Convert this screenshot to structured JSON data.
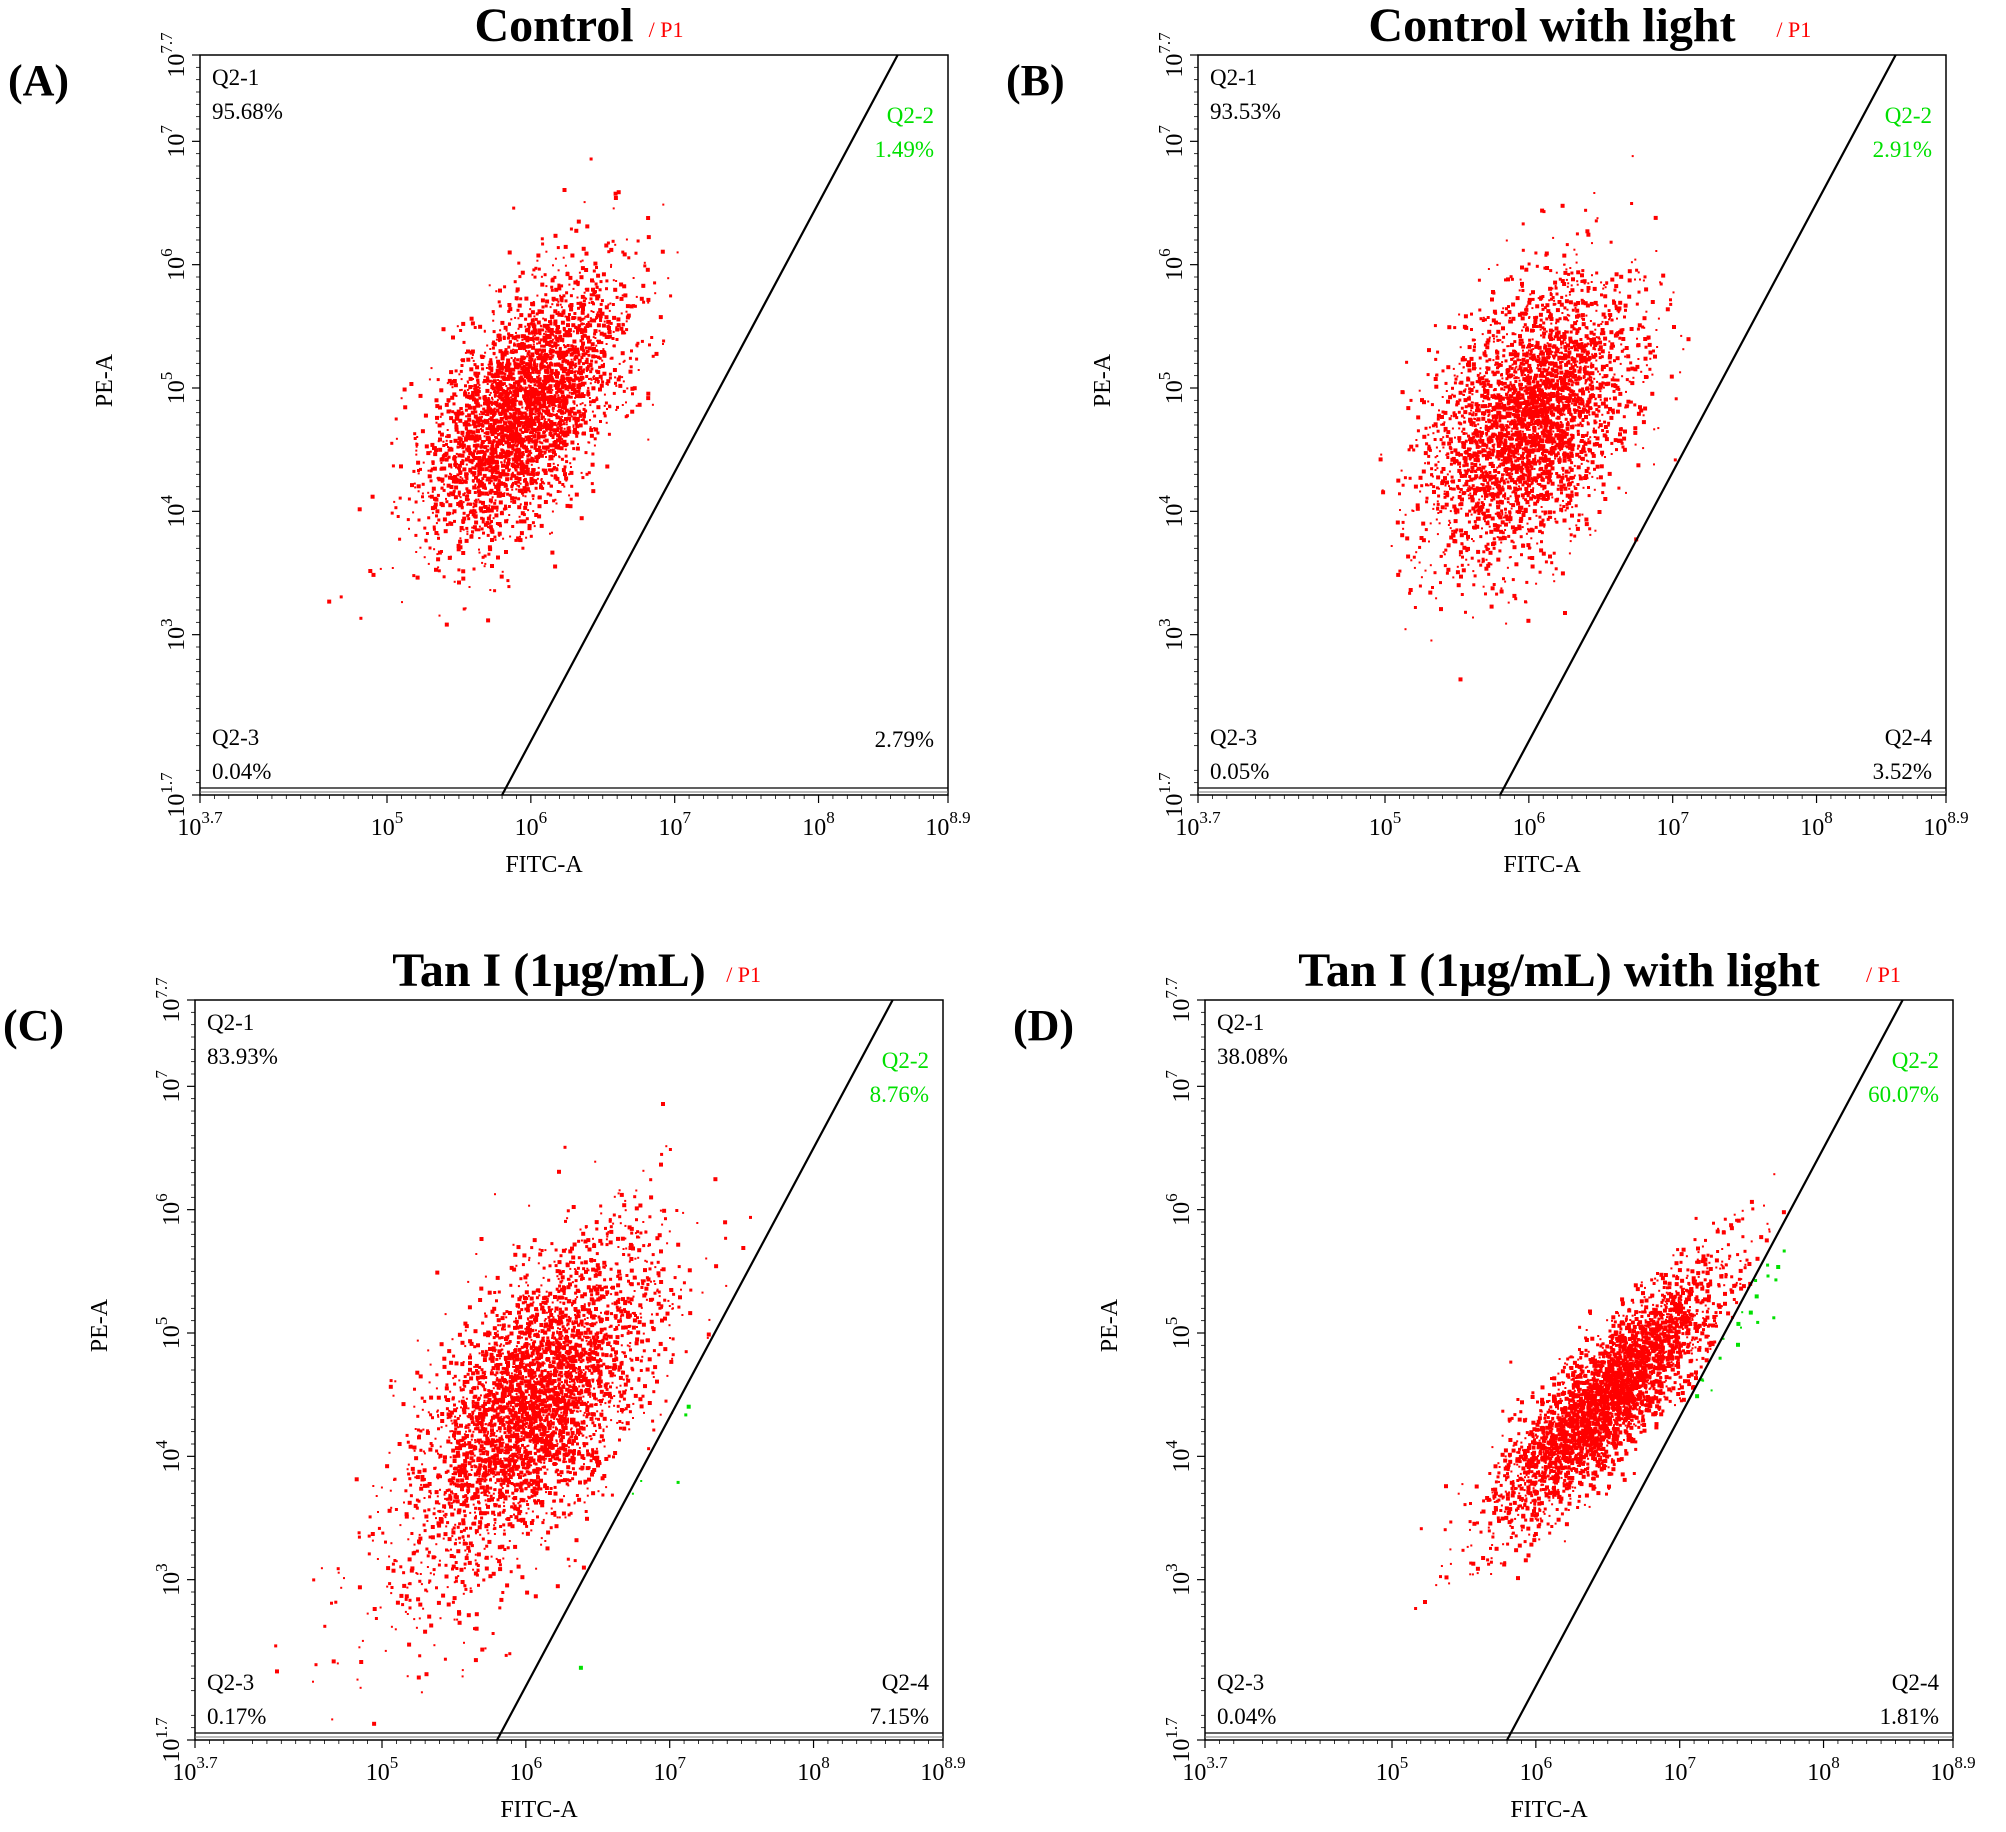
{
  "colors": {
    "events_upper_left": "#ff0000",
    "events_upper_right": "#00e000",
    "gate_line": "#000000",
    "axis": "#000000",
    "gate_name": "#ff0000"
  },
  "chart_data": [
    {
      "type": "scatter",
      "panel_label": "(A)",
      "title": "Control",
      "gate": "/ P1",
      "xlabel": "FITC-A",
      "ylabel": "PE-A",
      "x_log_range": [
        3.7,
        8.9
      ],
      "y_log_range": [
        1.7,
        7.7
      ],
      "x_ticks": [
        {
          "base": "10",
          "exp": "3.7"
        },
        {
          "base": "10",
          "exp": "5"
        },
        {
          "base": "10",
          "exp": "6"
        },
        {
          "base": "10",
          "exp": "7"
        },
        {
          "base": "10",
          "exp": "8"
        },
        {
          "base": "10",
          "exp": "8.9"
        }
      ],
      "y_ticks": [
        {
          "base": "10",
          "exp": "1.7"
        },
        {
          "base": "10",
          "exp": "3"
        },
        {
          "base": "10",
          "exp": "4"
        },
        {
          "base": "10",
          "exp": "5"
        },
        {
          "base": "10",
          "exp": "6"
        },
        {
          "base": "10",
          "exp": "7"
        },
        {
          "base": "10",
          "exp": "7.7"
        }
      ],
      "gate_line_log": [
        [
          5.8,
          1.7
        ],
        [
          8.55,
          7.7
        ]
      ],
      "quadrants": {
        "q1": {
          "name": "Q2-1",
          "percent": "95.68%"
        },
        "q2": {
          "name": "Q2-2",
          "percent": "1.49%"
        },
        "q3": {
          "name": "Q2-3",
          "percent": "0.04%"
        },
        "q4": {
          "name": "",
          "percent": "2.79%"
        }
      },
      "clusters": [
        {
          "cx": 5.95,
          "cy": 4.85,
          "sx": 0.33,
          "sy": 0.52,
          "rho": 0.55,
          "n": 3400
        }
      ]
    },
    {
      "type": "scatter",
      "panel_label": "(B)",
      "title": "Control with light",
      "gate": "/ P1",
      "xlabel": "FITC-A",
      "ylabel": "PE-A",
      "x_log_range": [
        3.7,
        8.9
      ],
      "y_log_range": [
        1.7,
        7.7
      ],
      "x_ticks": [
        {
          "base": "10",
          "exp": "3.7"
        },
        {
          "base": "10",
          "exp": "5"
        },
        {
          "base": "10",
          "exp": "6"
        },
        {
          "base": "10",
          "exp": "7"
        },
        {
          "base": "10",
          "exp": "8"
        },
        {
          "base": "10",
          "exp": "8.9"
        }
      ],
      "y_ticks": [
        {
          "base": "10",
          "exp": "1.7"
        },
        {
          "base": "10",
          "exp": "3"
        },
        {
          "base": "10",
          "exp": "4"
        },
        {
          "base": "10",
          "exp": "5"
        },
        {
          "base": "10",
          "exp": "6"
        },
        {
          "base": "10",
          "exp": "7"
        },
        {
          "base": "10",
          "exp": "7.7"
        }
      ],
      "gate_line_log": [
        [
          5.8,
          1.7
        ],
        [
          8.55,
          7.7
        ]
      ],
      "quadrants": {
        "q1": {
          "name": "Q2-1",
          "percent": "93.53%"
        },
        "q2": {
          "name": "Q2-2",
          "percent": "2.91%"
        },
        "q3": {
          "name": "Q2-3",
          "percent": "0.05%"
        },
        "q4": {
          "name": "Q2-4",
          "percent": "3.52%"
        }
      },
      "clusters": [
        {
          "cx": 6.0,
          "cy": 4.75,
          "sx": 0.35,
          "sy": 0.55,
          "rho": 0.45,
          "n": 3400
        }
      ]
    },
    {
      "type": "scatter",
      "panel_label": "(C)",
      "title": "Tan I (1μg/mL)",
      "gate": "/ P1",
      "xlabel": "FITC-A",
      "ylabel": "PE-A",
      "x_log_range": [
        3.7,
        8.9
      ],
      "y_log_range": [
        1.7,
        7.7
      ],
      "x_ticks": [
        {
          "base": "10",
          "exp": "3.7"
        },
        {
          "base": "10",
          "exp": "5"
        },
        {
          "base": "10",
          "exp": "6"
        },
        {
          "base": "10",
          "exp": "7"
        },
        {
          "base": "10",
          "exp": "8"
        },
        {
          "base": "10",
          "exp": "8.9"
        }
      ],
      "y_ticks": [
        {
          "base": "10",
          "exp": "1.7"
        },
        {
          "base": "10",
          "exp": "3"
        },
        {
          "base": "10",
          "exp": "4"
        },
        {
          "base": "10",
          "exp": "5"
        },
        {
          "base": "10",
          "exp": "6"
        },
        {
          "base": "10",
          "exp": "7"
        },
        {
          "base": "10",
          "exp": "7.7"
        }
      ],
      "gate_line_log": [
        [
          5.8,
          1.7
        ],
        [
          8.55,
          7.7
        ]
      ],
      "quadrants": {
        "q1": {
          "name": "Q2-1",
          "percent": "83.93%"
        },
        "q2": {
          "name": "Q2-2",
          "percent": "8.76%"
        },
        "q3": {
          "name": "Q2-3",
          "percent": "0.17%"
        },
        "q4": {
          "name": "Q2-4",
          "percent": "7.15%"
        }
      },
      "clusters": [
        {
          "cx": 6.05,
          "cy": 4.45,
          "sx": 0.4,
          "sy": 0.62,
          "rho": 0.6,
          "n": 3800
        },
        {
          "cx": 5.3,
          "cy": 3.0,
          "sx": 0.5,
          "sy": 0.5,
          "rho": 0.5,
          "n": 120
        }
      ]
    },
    {
      "type": "scatter",
      "panel_label": "(D)",
      "title": "Tan I (1μg/mL) with light",
      "gate": "/ P1",
      "xlabel": "FITC-A",
      "ylabel": "PE-A",
      "x_log_range": [
        3.7,
        8.9
      ],
      "y_log_range": [
        1.7,
        7.7
      ],
      "x_ticks": [
        {
          "base": "10",
          "exp": "3.7"
        },
        {
          "base": "10",
          "exp": "5"
        },
        {
          "base": "10",
          "exp": "6"
        },
        {
          "base": "10",
          "exp": "7"
        },
        {
          "base": "10",
          "exp": "8"
        },
        {
          "base": "10",
          "exp": "8.9"
        }
      ],
      "y_ticks": [
        {
          "base": "10",
          "exp": "1.7"
        },
        {
          "base": "10",
          "exp": "3"
        },
        {
          "base": "10",
          "exp": "4"
        },
        {
          "base": "10",
          "exp": "5"
        },
        {
          "base": "10",
          "exp": "6"
        },
        {
          "base": "10",
          "exp": "7"
        },
        {
          "base": "10",
          "exp": "7.7"
        }
      ],
      "gate_line_log": [
        [
          5.8,
          1.7
        ],
        [
          8.55,
          7.7
        ]
      ],
      "quadrants": {
        "q1": {
          "name": "Q2-1",
          "percent": "38.08%"
        },
        "q2": {
          "name": "Q2-2",
          "percent": "60.07%"
        },
        "q3": {
          "name": "Q2-3",
          "percent": "0.04%"
        },
        "q4": {
          "name": "Q2-4",
          "percent": "1.81%"
        }
      },
      "clusters": [
        {
          "cx": 6.5,
          "cy": 4.5,
          "sx": 0.38,
          "sy": 0.5,
          "rho": 0.85,
          "n": 3600
        }
      ]
    }
  ]
}
